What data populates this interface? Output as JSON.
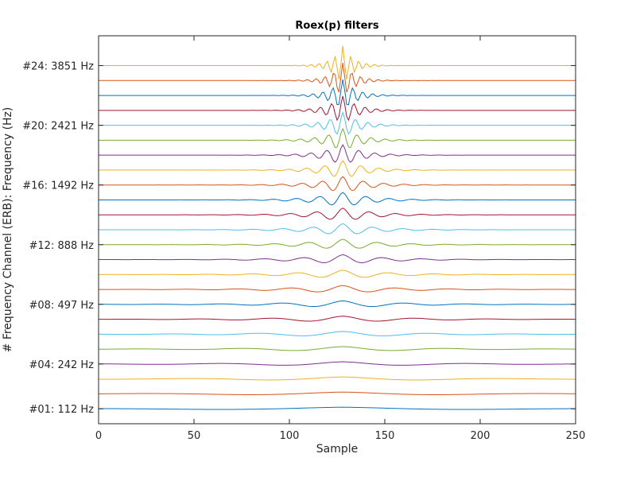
{
  "chart_data": {
    "type": "line",
    "title": "Roex(p) filters",
    "xlabel": "Sample",
    "ylabel": "# Frequency Channel (ERB): Frequency (Hz)",
    "xlim": [
      0,
      250
    ],
    "ylim": [
      0,
      26
    ],
    "xticks": [
      0,
      50,
      100,
      150,
      200,
      250
    ],
    "xtick_labels": [
      "0",
      "50",
      "100",
      "150",
      "200",
      "250"
    ],
    "yticks": [
      1,
      4,
      8,
      12,
      16,
      20,
      24
    ],
    "ytick_labels": [
      "#01:  112 Hz",
      "#04:  242 Hz",
      "#08:  497 Hz",
      "#12:  888 Hz",
      "#16: 1492 Hz",
      "#20: 2421 Hz",
      "#24: 3851 Hz"
    ],
    "num_channels": 24,
    "f_min_hz": 112,
    "f_max_hz": 3851,
    "center_sample": 128,
    "series_colors": [
      "#0072BD",
      "#D95319",
      "#EDB120",
      "#7E2F8E",
      "#77AC30",
      "#4DBEEE",
      "#A2142F"
    ],
    "grid": false,
    "legend": "none"
  }
}
